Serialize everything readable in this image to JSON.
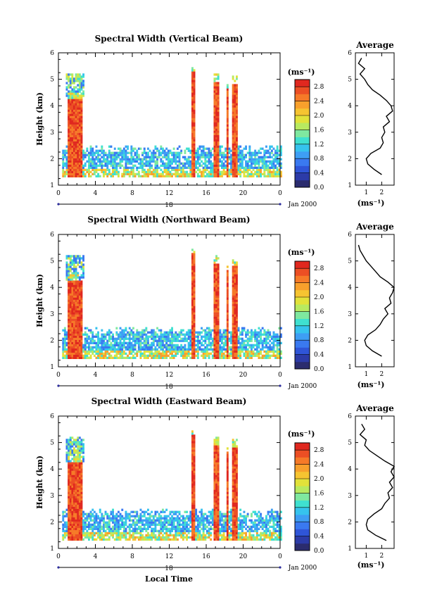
{
  "figure": {
    "shared_xlabel": "Local Time",
    "date_label": "Jan 2000",
    "day_label": "18",
    "avg_title": "Average",
    "avg_xlabel": "(ms⁻¹)",
    "cbar_label": "(ms⁻¹)"
  },
  "colorbar": {
    "ticks": [
      "0.0",
      "0.4",
      "0.8",
      "1.2",
      "1.6",
      "2.0",
      "2.4",
      "2.8"
    ],
    "colors": [
      "#2b2c6e",
      "#2c3ba8",
      "#2f55d8",
      "#3a79f0",
      "#3e9ef4",
      "#36c3ee",
      "#3fe0d0",
      "#7fe8a0",
      "#b8ea60",
      "#e2e23a",
      "#f6c431",
      "#f8a02c",
      "#f67a28",
      "#ec4f24",
      "#e0281f"
    ],
    "range": [
      0,
      3.0
    ]
  },
  "chart_data": [
    {
      "type": "heatmap",
      "title": "Spectral Width (Vertical Beam)",
      "ylabel": "Height (km)",
      "xlabel": "",
      "x_ticks": [
        "0",
        "4",
        "8",
        "12",
        "16",
        "20",
        "0"
      ],
      "xlim": [
        0,
        24
      ],
      "y_ticks": [
        "1",
        "2",
        "3",
        "4",
        "5",
        "6"
      ],
      "ylim": [
        1,
        6
      ],
      "average_profile": {
        "x_ticks": [
          "1",
          "2"
        ],
        "xlim": [
          0.3,
          2.8
        ],
        "heights": [
          1.4,
          1.6,
          1.8,
          2.0,
          2.2,
          2.4,
          2.6,
          2.8,
          3.0,
          3.2,
          3.4,
          3.6,
          3.8,
          4.0,
          4.2,
          4.4,
          4.6,
          4.8,
          5.0,
          5.2,
          5.4,
          5.6,
          5.8
        ],
        "values": [
          2.0,
          1.5,
          1.1,
          1.0,
          1.3,
          1.9,
          2.1,
          2.0,
          2.2,
          2.1,
          2.5,
          2.3,
          2.7,
          2.6,
          2.3,
          1.9,
          1.4,
          1.1,
          0.9,
          0.6,
          0.9,
          0.5,
          0.7
        ]
      }
    },
    {
      "type": "heatmap",
      "title": "Spectral Width (Northward Beam)",
      "ylabel": "Height (km)",
      "xlabel": "",
      "x_ticks": [
        "0",
        "4",
        "8",
        "12",
        "16",
        "20",
        "0"
      ],
      "xlim": [
        0,
        24
      ],
      "y_ticks": [
        "1",
        "2",
        "3",
        "4",
        "5",
        "6"
      ],
      "ylim": [
        1,
        6
      ],
      "average_profile": {
        "x_ticks": [
          "1",
          "2"
        ],
        "xlim": [
          0.3,
          2.8
        ],
        "heights": [
          1.4,
          1.6,
          1.8,
          2.0,
          2.2,
          2.4,
          2.6,
          2.8,
          3.0,
          3.2,
          3.4,
          3.6,
          3.8,
          4.0,
          4.2,
          4.4,
          4.6,
          4.8,
          5.0,
          5.2,
          5.4,
          5.6
        ],
        "values": [
          2.0,
          1.4,
          1.0,
          0.9,
          1.1,
          1.6,
          1.9,
          2.1,
          2.4,
          2.2,
          2.6,
          2.5,
          2.7,
          2.8,
          2.4,
          1.9,
          1.6,
          1.3,
          1.0,
          0.8,
          0.6,
          0.5
        ]
      }
    },
    {
      "type": "heatmap",
      "title": "Spectral Width (Eastward Beam)",
      "ylabel": "Height (km)",
      "xlabel": "Local Time",
      "x_ticks": [
        "0",
        "4",
        "8",
        "12",
        "16",
        "20",
        "0"
      ],
      "xlim": [
        0,
        24
      ],
      "y_ticks": [
        "1",
        "2",
        "3",
        "4",
        "5",
        "6"
      ],
      "ylim": [
        1,
        6
      ],
      "average_profile": {
        "x_ticks": [
          "1",
          "2"
        ],
        "xlim": [
          0.3,
          2.8
        ],
        "heights": [
          1.3,
          1.5,
          1.7,
          1.9,
          2.1,
          2.3,
          2.5,
          2.7,
          2.9,
          3.1,
          3.3,
          3.5,
          3.7,
          3.9,
          4.1,
          4.3,
          4.5,
          4.7,
          4.9,
          5.1,
          5.3,
          5.5,
          5.7
        ],
        "values": [
          2.3,
          1.6,
          1.1,
          1.0,
          1.1,
          1.5,
          2.0,
          2.2,
          2.5,
          2.4,
          2.7,
          2.5,
          2.8,
          2.6,
          2.8,
          2.2,
          1.7,
          1.2,
          0.9,
          1.0,
          0.6,
          0.9,
          0.7
        ]
      }
    }
  ]
}
